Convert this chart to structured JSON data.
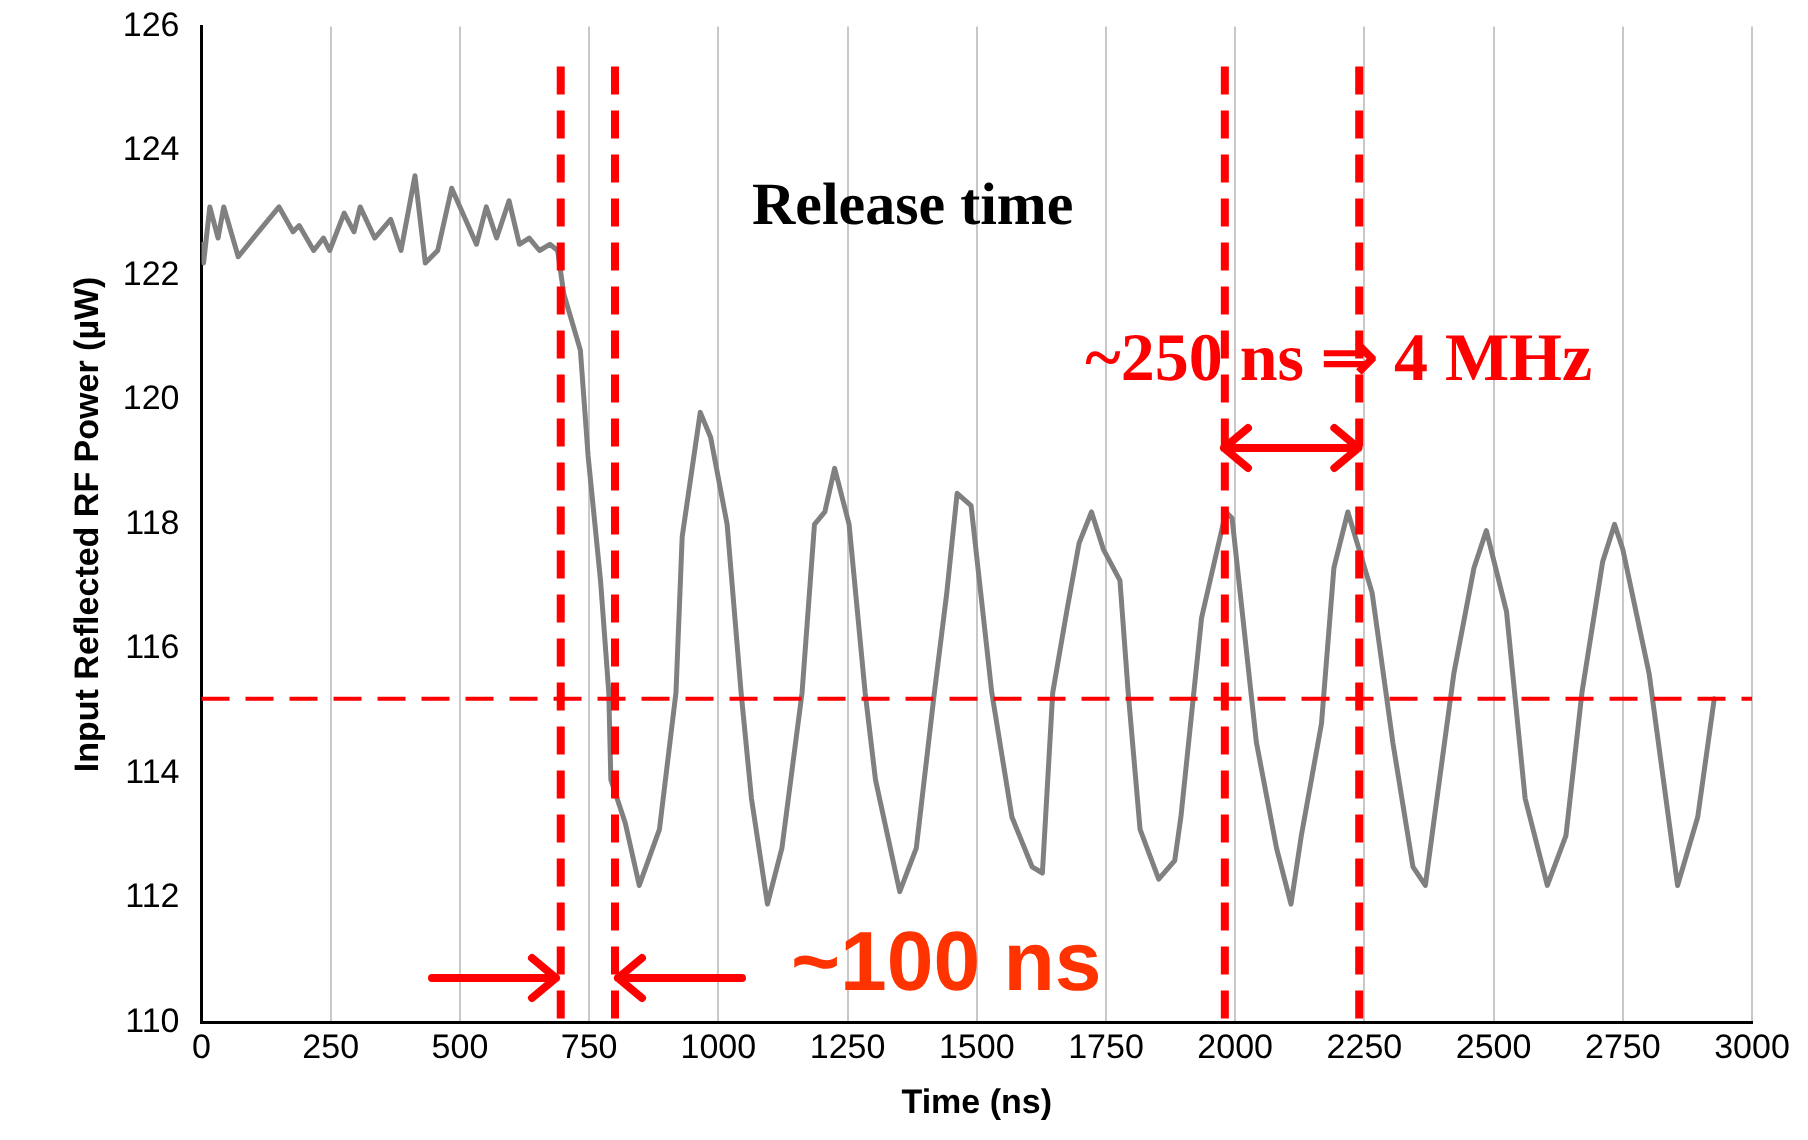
{
  "chart_data": {
    "type": "line",
    "xlabel": "Time (ns)",
    "ylabel": "Input Reflected RF Power (µW)",
    "xlim": [
      0,
      3000
    ],
    "xticks": [
      0,
      250,
      500,
      750,
      1000,
      1250,
      1500,
      1750,
      2000,
      2250,
      2500,
      2750,
      3000
    ],
    "ylim": [
      110,
      126
    ],
    "yticks": [
      110,
      112,
      114,
      116,
      118,
      120,
      122,
      124,
      126
    ],
    "grid": "x",
    "legend": false,
    "marker": "none",
    "line_style": "solid",
    "series": [
      {
        "color": "#808080",
        "x": [
          0,
          4,
          16,
          32,
          43,
          71,
          110,
          150,
          177,
          189,
          217,
          236,
          248,
          276,
          295,
          307,
          335,
          366,
          386,
          413,
          433,
          457,
          484,
          532,
          551,
          571,
          595,
          615,
          634,
          654,
          674,
          689,
          701,
          733,
          748,
          772,
          788,
          792,
          820,
          847,
          886,
          918,
          930,
          965,
          985,
          1017,
          1044,
          1064,
          1095,
          1123,
          1162,
          1186,
          1206,
          1225,
          1253,
          1284,
          1304,
          1351,
          1383,
          1418,
          1442,
          1462,
          1489,
          1529,
          1568,
          1607,
          1627,
          1647,
          1674,
          1698,
          1722,
          1745,
          1777,
          1793,
          1816,
          1852,
          1883,
          1895,
          1935,
          1982,
          1994,
          2041,
          2080,
          2108,
          2128,
          2167,
          2191,
          2218,
          2265,
          2305,
          2344,
          2368,
          2384,
          2423,
          2462,
          2486,
          2525,
          2561,
          2604,
          2640,
          2671,
          2711,
          2734,
          2750,
          2801,
          2856,
          2895,
          2927
        ],
        "values": [
          122.5,
          122.2,
          123.1,
          122.6,
          123.1,
          122.3,
          122.7,
          123.1,
          122.7,
          122.8,
          122.4,
          122.6,
          122.4,
          123.0,
          122.7,
          123.1,
          122.6,
          122.9,
          122.4,
          123.6,
          122.2,
          122.4,
          123.4,
          122.5,
          123.1,
          122.6,
          123.2,
          122.5,
          122.6,
          122.4,
          122.5,
          122.4,
          121.7,
          120.8,
          119.1,
          117.1,
          115.3,
          113.9,
          113.2,
          112.2,
          113.1,
          115.3,
          117.8,
          119.8,
          119.4,
          118.0,
          115.3,
          113.6,
          111.9,
          112.8,
          115.3,
          118.0,
          118.2,
          118.9,
          118.0,
          115.3,
          113.9,
          112.1,
          112.8,
          115.3,
          116.9,
          118.5,
          118.3,
          115.3,
          113.3,
          112.5,
          112.4,
          115.3,
          116.6,
          117.7,
          118.2,
          117.6,
          117.1,
          115.3,
          113.1,
          112.3,
          112.6,
          113.3,
          116.5,
          118.2,
          118.1,
          114.5,
          112.8,
          111.9,
          113.0,
          114.8,
          117.3,
          118.2,
          116.9,
          114.5,
          112.5,
          112.2,
          113.2,
          115.6,
          117.3,
          117.9,
          116.6,
          113.6,
          112.2,
          113.0,
          115.3,
          117.4,
          118.0,
          117.6,
          115.6,
          112.2,
          113.3,
          115.2
        ]
      }
    ],
    "ref_lines": [
      {
        "axis": "x",
        "value": 695,
        "color": "#ff0000",
        "line_style": "dashed"
      },
      {
        "axis": "x",
        "value": 800,
        "color": "#ff0000",
        "line_style": "dashed"
      },
      {
        "axis": "y",
        "value": 115.2,
        "color": "#ff0000",
        "line_style": "dashed"
      },
      {
        "axis": "x",
        "value": 1980,
        "color": "#ff0000",
        "line_style": "dashed"
      },
      {
        "axis": "x",
        "value": 2240,
        "color": "#ff0000",
        "line_style": "dashed"
      }
    ],
    "annotations": [
      "Release time",
      "~250 ns ⇒ 4 MHz",
      {
        "text": "~100 ns",
        "x": 800,
        "y": 110.8
      }
    ]
  }
}
